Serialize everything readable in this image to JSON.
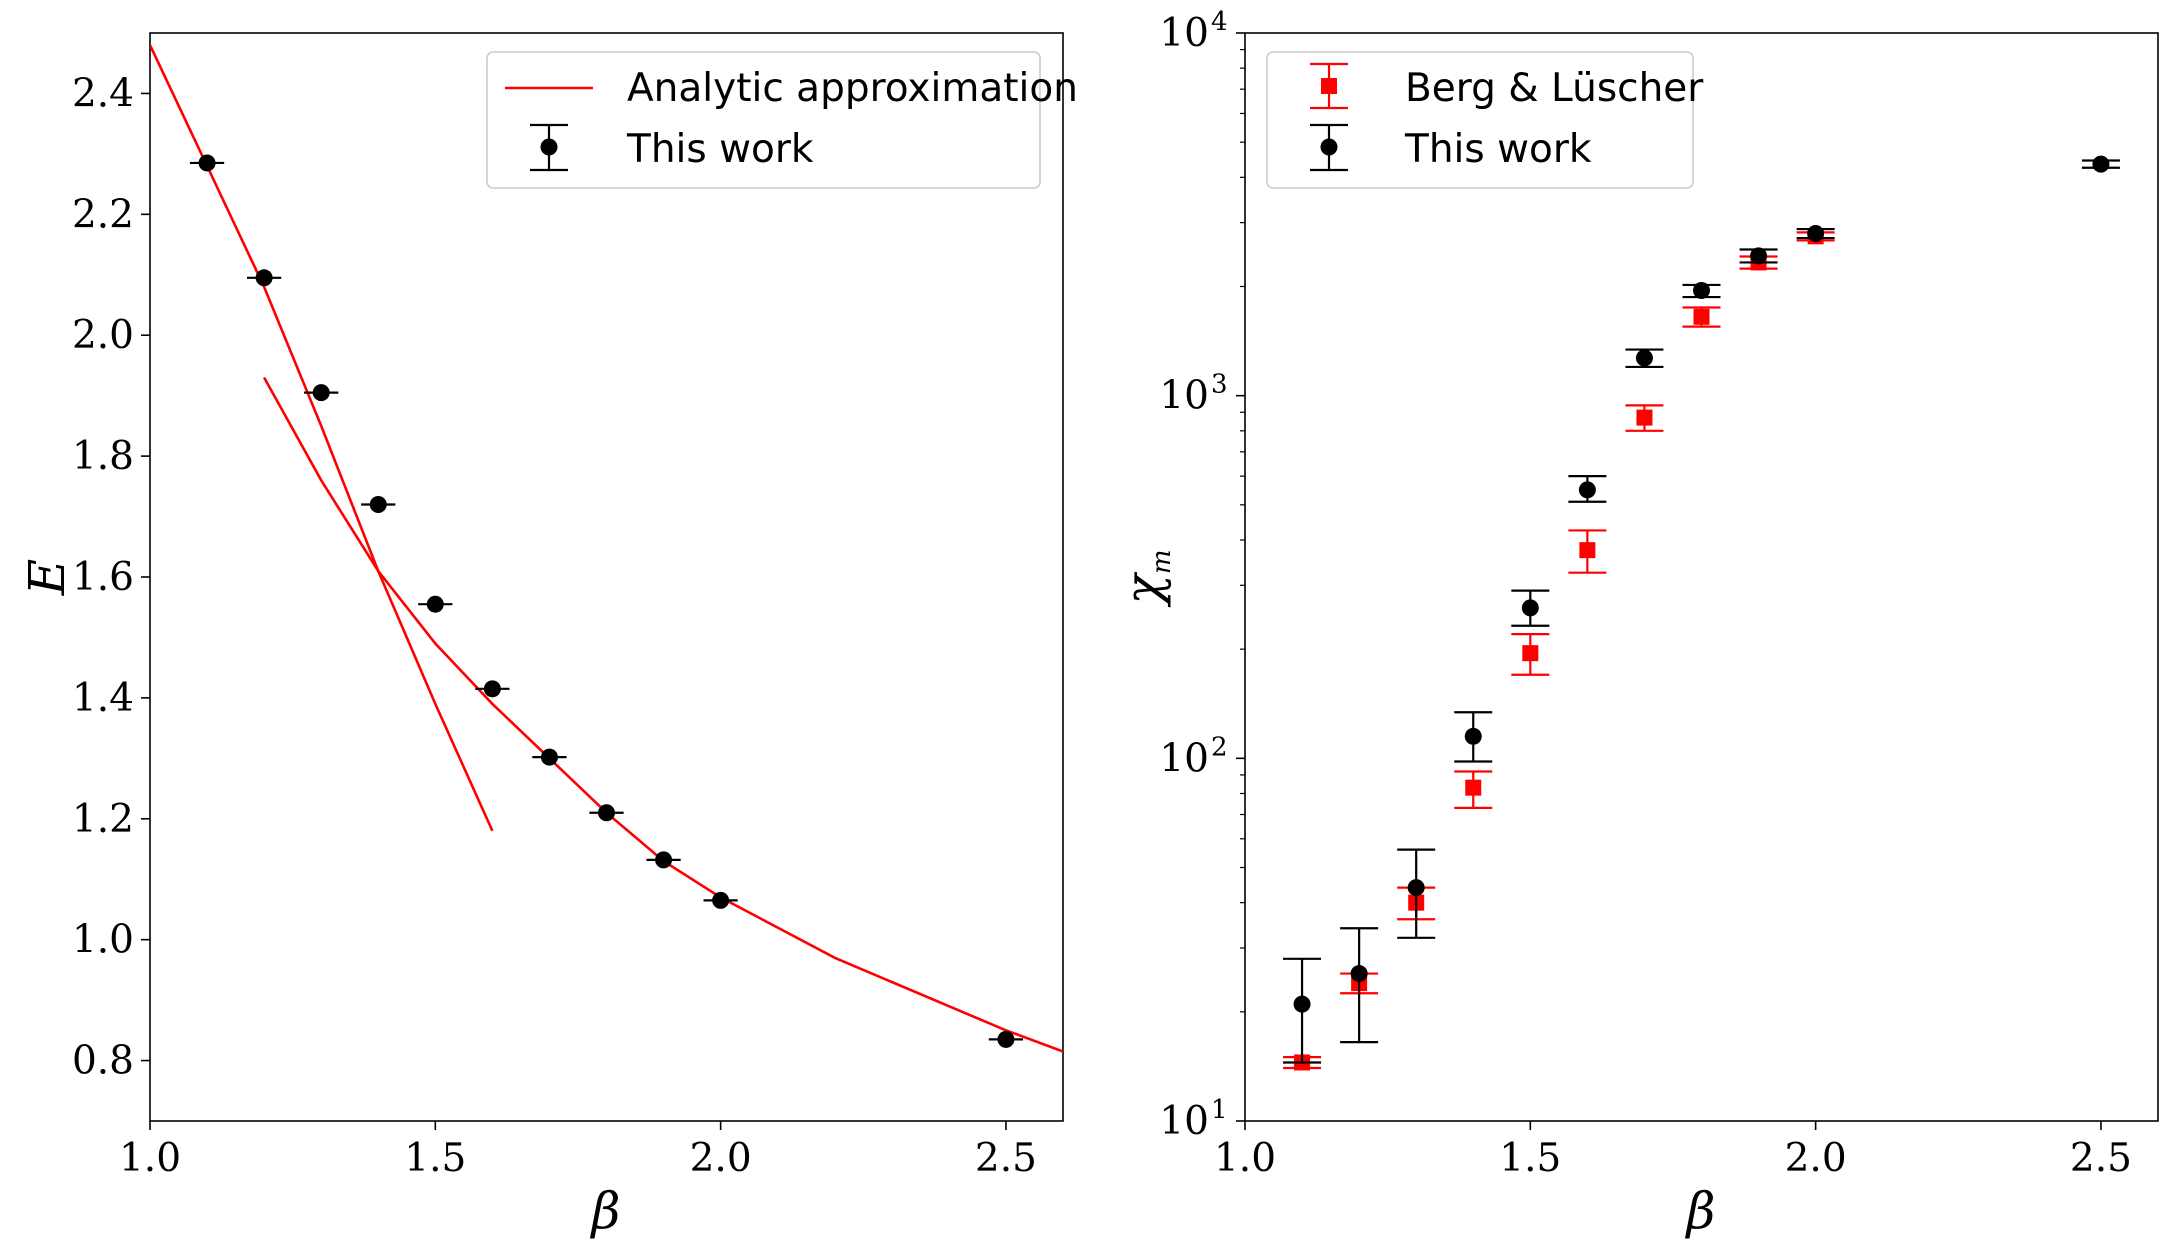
{
  "chart_data": [
    {
      "type": "scatter",
      "xlabel": "β",
      "ylabel": "E",
      "xlim": [
        1.0,
        2.6
      ],
      "ylim": [
        0.7,
        2.5
      ],
      "xticks": [
        "1.0",
        "1.5",
        "2.0",
        "2.5"
      ],
      "xtick_values": [
        1.0,
        1.5,
        2.0,
        2.5
      ],
      "yticks": [
        "0.8",
        "1.0",
        "1.2",
        "1.4",
        "1.6",
        "1.8",
        "2.0",
        "2.2",
        "2.4"
      ],
      "ytick_values": [
        0.8,
        1.0,
        1.2,
        1.4,
        1.6,
        1.8,
        2.0,
        2.2,
        2.4
      ],
      "legend_position": "top-right",
      "series": [
        {
          "name": "Analytic approximation",
          "kind": "line",
          "color": "#ff0000",
          "segments": [
            {
              "x": [
                1.0,
                1.1,
                1.2,
                1.3,
                1.4,
                1.5,
                1.6
              ],
              "y": [
                2.48,
                2.28,
                2.08,
                1.85,
                1.61,
                1.39,
                1.18
              ]
            },
            {
              "x": [
                1.2,
                1.3,
                1.4,
                1.5,
                1.6,
                1.7,
                1.8,
                1.9,
                2.0,
                2.1,
                2.2,
                2.3,
                2.4,
                2.5,
                2.6
              ],
              "y": [
                1.93,
                1.76,
                1.61,
                1.49,
                1.39,
                1.3,
                1.21,
                1.13,
                1.07,
                1.02,
                0.97,
                0.93,
                0.89,
                0.85,
                0.815
              ]
            }
          ]
        },
        {
          "name": "This work",
          "kind": "errorbar-x",
          "color": "#000000",
          "x": [
            1.1,
            1.2,
            1.3,
            1.4,
            1.5,
            1.6,
            1.7,
            1.8,
            1.9,
            2.0,
            2.5
          ],
          "y": [
            2.285,
            2.095,
            1.905,
            1.72,
            1.555,
            1.415,
            1.302,
            1.21,
            1.132,
            1.065,
            0.835
          ],
          "xerr": [
            0.03,
            0.03,
            0.03,
            0.03,
            0.03,
            0.03,
            0.03,
            0.03,
            0.03,
            0.03,
            0.03
          ]
        }
      ]
    },
    {
      "type": "scatter",
      "yscale": "log",
      "xlabel": "β",
      "ylabel": "χ",
      "ylabel_sub": "m",
      "xlim": [
        1.0,
        2.6
      ],
      "ylim": [
        10,
        10000
      ],
      "xticks": [
        "1.0",
        "1.5",
        "2.0",
        "2.5"
      ],
      "xtick_values": [
        1.0,
        1.5,
        2.0,
        2.5
      ],
      "ytick_values": [
        10,
        100,
        1000,
        10000
      ],
      "ytick_base": "10",
      "ytick_exponents": [
        "1",
        "2",
        "3",
        "4"
      ],
      "legend_position": "top-left",
      "series": [
        {
          "name": "Berg & Lüscher",
          "kind": "errorbar-y",
          "marker": "square",
          "color": "#ff0000",
          "x": [
            1.1,
            1.2,
            1.3,
            1.4,
            1.5,
            1.6,
            1.7,
            1.8,
            1.9,
            2.0
          ],
          "y": [
            14.5,
            24,
            40,
            83,
            195,
            375,
            870,
            1650,
            2330,
            2750
          ],
          "ylow": [
            14,
            22.5,
            36,
            73,
            170,
            325,
            800,
            1550,
            2240,
            2680
          ],
          "yhigh": [
            15,
            25.5,
            44,
            92,
            220,
            425,
            940,
            1750,
            2420,
            2820
          ]
        },
        {
          "name": "This work",
          "kind": "errorbar-y",
          "marker": "circle",
          "color": "#000000",
          "x": [
            1.1,
            1.2,
            1.3,
            1.4,
            1.5,
            1.6,
            1.7,
            1.8,
            1.9,
            2.0,
            2.5
          ],
          "y": [
            21,
            25.5,
            44,
            115,
            260,
            550,
            1270,
            1950,
            2430,
            2800,
            4350
          ],
          "ylow": [
            14.5,
            16.5,
            32,
            98,
            232,
            510,
            1200,
            1870,
            2330,
            2720,
            4250
          ],
          "yhigh": [
            28,
            34,
            56,
            134,
            290,
            600,
            1340,
            2020,
            2530,
            2880,
            4450
          ]
        }
      ]
    }
  ]
}
